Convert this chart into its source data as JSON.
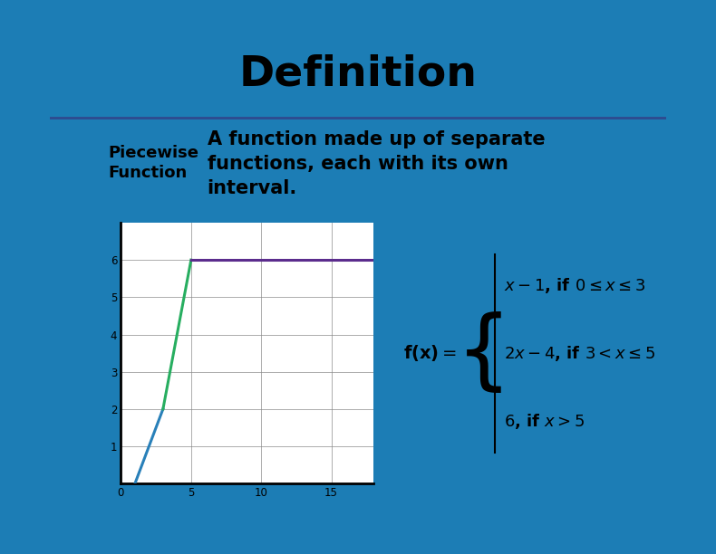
{
  "title": "Definition",
  "title_fontsize": 34,
  "title_fontweight": "bold",
  "bg_color": "#29ABE2",
  "separator_color": "#2E4A8E",
  "term": "Piecewise\nFunction",
  "definition": "A function made up of separate\nfunctions, each with its own\ninterval.",
  "term_fontsize": 13,
  "def_fontsize": 15,
  "plot_xlim": [
    0,
    18
  ],
  "plot_ylim": [
    0,
    7
  ],
  "xticks": [
    0,
    5,
    10,
    15
  ],
  "yticks": [
    1,
    2,
    3,
    4,
    5,
    6
  ],
  "line1_color": "#2980B9",
  "line2_color": "#27AE60",
  "line3_color": "#5B2C8D",
  "formula_fontsize": 13,
  "outer_bg": "#1A85C8",
  "chalkboard_bg": "#2E86AB"
}
